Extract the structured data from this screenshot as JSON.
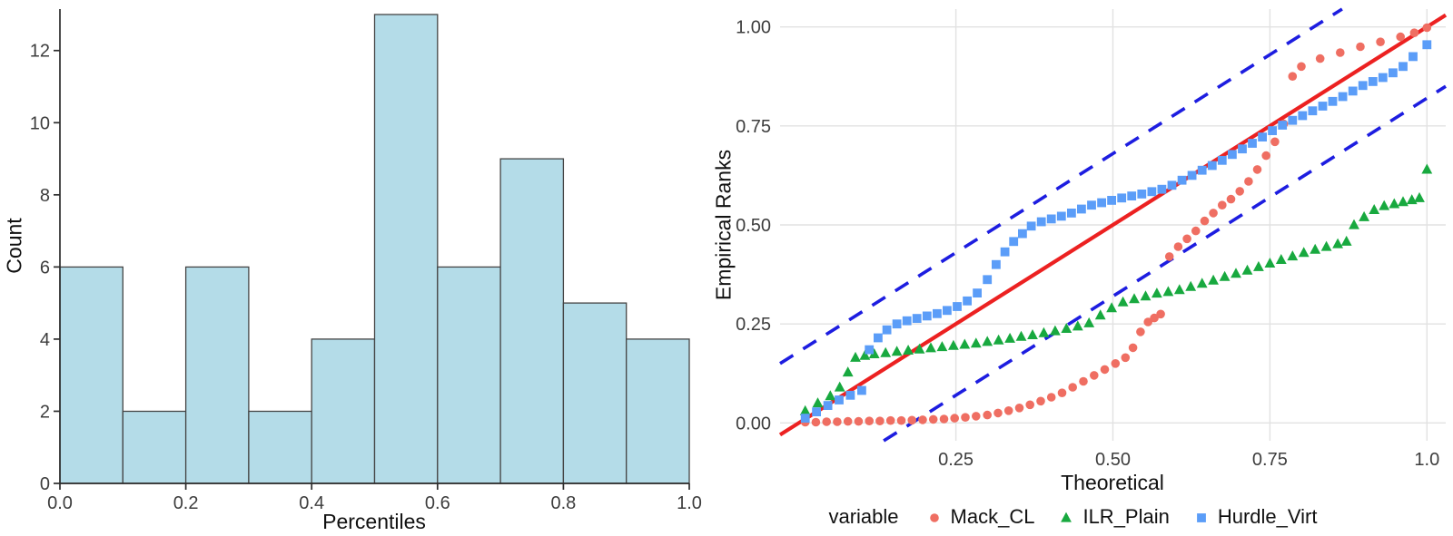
{
  "chart_data": [
    {
      "id": "percentile-histogram",
      "type": "bar",
      "xlabel": "Percentiles",
      "ylabel": "Count",
      "bin_start": 0.0,
      "bin_width": 0.1,
      "values": [
        6,
        2,
        6,
        2,
        4,
        13,
        6,
        9,
        5,
        4
      ],
      "xlim": [
        0.0,
        1.0
      ],
      "ylim": [
        0,
        13.15
      ],
      "x_ticks": [
        {
          "v": 0.0,
          "label": "0.0"
        },
        {
          "v": 0.2,
          "label": "0.2"
        },
        {
          "v": 0.4,
          "label": "0.4"
        },
        {
          "v": 0.6,
          "label": "0.6"
        },
        {
          "v": 0.8,
          "label": "0.8"
        },
        {
          "v": 1.0,
          "label": "1.0"
        }
      ],
      "y_ticks": [
        {
          "v": 0,
          "label": "0"
        },
        {
          "v": 2,
          "label": "2"
        },
        {
          "v": 4,
          "label": "4"
        },
        {
          "v": 6,
          "label": "6"
        },
        {
          "v": 8,
          "label": "8"
        },
        {
          "v": 10,
          "label": "10"
        },
        {
          "v": 12,
          "label": "12"
        }
      ],
      "grid": false,
      "bar_fill": "#b4dce8",
      "bar_stroke": "#454545",
      "axis_color": "#2d2d2d"
    },
    {
      "id": "qq-plot",
      "type": "scatter",
      "xlabel": "Theoretical",
      "ylabel": "Empirical Ranks",
      "legend_title": "variable",
      "legend_position": "bottom",
      "xlim": [
        -0.03,
        1.03
      ],
      "ylim": [
        -0.045,
        1.045
      ],
      "x_ticks": [
        {
          "v": 0.25,
          "label": "0.25"
        },
        {
          "v": 0.5,
          "label": "0.50"
        },
        {
          "v": 0.75,
          "label": "0.75"
        },
        {
          "v": 1.0,
          "label": "1.0"
        }
      ],
      "y_ticks": [
        {
          "v": 0.0,
          "label": "0.00"
        },
        {
          "v": 0.25,
          "label": "0.25"
        },
        {
          "v": 0.5,
          "label": "0.50"
        },
        {
          "v": 0.75,
          "label": "0.75"
        },
        {
          "v": 1.0,
          "label": "1.00"
        }
      ],
      "grid": true,
      "grid_color": "#e2e2e2",
      "reference_line": {
        "type": "identity",
        "color": "#ec2121",
        "width": 4.2
      },
      "band_lines": [
        {
          "offset": 0.18
        },
        {
          "offset": -0.18
        }
      ],
      "band_style": {
        "color": "#1d1de0",
        "dash": "17 13",
        "width": 3.6
      },
      "series": [
        {
          "name": "Mack_CL",
          "marker": "circle",
          "color": "#ef6e62",
          "points": [
            [
              0.01,
              0.002
            ],
            [
              0.027,
              0.002
            ],
            [
              0.044,
              0.003
            ],
            [
              0.061,
              0.003
            ],
            [
              0.078,
              0.004
            ],
            [
              0.095,
              0.004
            ],
            [
              0.112,
              0.005
            ],
            [
              0.129,
              0.005
            ],
            [
              0.146,
              0.006
            ],
            [
              0.163,
              0.006
            ],
            [
              0.18,
              0.007
            ],
            [
              0.197,
              0.008
            ],
            [
              0.214,
              0.009
            ],
            [
              0.231,
              0.01
            ],
            [
              0.248,
              0.012
            ],
            [
              0.265,
              0.014
            ],
            [
              0.282,
              0.017
            ],
            [
              0.3,
              0.02
            ],
            [
              0.317,
              0.025
            ],
            [
              0.334,
              0.031
            ],
            [
              0.351,
              0.038
            ],
            [
              0.368,
              0.046
            ],
            [
              0.385,
              0.055
            ],
            [
              0.402,
              0.065
            ],
            [
              0.419,
              0.076
            ],
            [
              0.436,
              0.09
            ],
            [
              0.453,
              0.105
            ],
            [
              0.47,
              0.12
            ],
            [
              0.487,
              0.135
            ],
            [
              0.504,
              0.15
            ],
            [
              0.52,
              0.165
            ],
            [
              0.532,
              0.19
            ],
            [
              0.544,
              0.23
            ],
            [
              0.556,
              0.255
            ],
            [
              0.566,
              0.265
            ],
            [
              0.576,
              0.275
            ],
            [
              0.59,
              0.42
            ],
            [
              0.604,
              0.445
            ],
            [
              0.618,
              0.465
            ],
            [
              0.632,
              0.485
            ],
            [
              0.646,
              0.51
            ],
            [
              0.66,
              0.53
            ],
            [
              0.674,
              0.55
            ],
            [
              0.688,
              0.565
            ],
            [
              0.702,
              0.585
            ],
            [
              0.716,
              0.61
            ],
            [
              0.73,
              0.64
            ],
            [
              0.744,
              0.675
            ],
            [
              0.758,
              0.71
            ],
            [
              0.772,
              0.755
            ],
            [
              0.786,
              0.875
            ],
            [
              0.8,
              0.9
            ],
            [
              0.83,
              0.92
            ],
            [
              0.862,
              0.935
            ],
            [
              0.894,
              0.95
            ],
            [
              0.926,
              0.962
            ],
            [
              0.958,
              0.975
            ],
            [
              0.98,
              0.985
            ],
            [
              1.0,
              0.998
            ]
          ]
        },
        {
          "name": "ILR_Plain",
          "marker": "triangle",
          "color": "#18a93f",
          "points": [
            [
              0.01,
              0.03
            ],
            [
              0.03,
              0.05
            ],
            [
              0.05,
              0.068
            ],
            [
              0.065,
              0.09
            ],
            [
              0.078,
              0.128
            ],
            [
              0.09,
              0.165
            ],
            [
              0.105,
              0.17
            ],
            [
              0.12,
              0.174
            ],
            [
              0.138,
              0.177
            ],
            [
              0.156,
              0.18
            ],
            [
              0.174,
              0.183
            ],
            [
              0.192,
              0.186
            ],
            [
              0.21,
              0.189
            ],
            [
              0.228,
              0.192
            ],
            [
              0.246,
              0.195
            ],
            [
              0.264,
              0.198
            ],
            [
              0.282,
              0.201
            ],
            [
              0.3,
              0.205
            ],
            [
              0.318,
              0.209
            ],
            [
              0.336,
              0.213
            ],
            [
              0.354,
              0.218
            ],
            [
              0.372,
              0.222
            ],
            [
              0.39,
              0.227
            ],
            [
              0.408,
              0.232
            ],
            [
              0.426,
              0.238
            ],
            [
              0.444,
              0.244
            ],
            [
              0.462,
              0.252
            ],
            [
              0.48,
              0.272
            ],
            [
              0.498,
              0.29
            ],
            [
              0.516,
              0.305
            ],
            [
              0.534,
              0.313
            ],
            [
              0.552,
              0.32
            ],
            [
              0.57,
              0.327
            ],
            [
              0.588,
              0.331
            ],
            [
              0.606,
              0.336
            ],
            [
              0.624,
              0.344
            ],
            [
              0.642,
              0.352
            ],
            [
              0.66,
              0.36
            ],
            [
              0.678,
              0.369
            ],
            [
              0.696,
              0.377
            ],
            [
              0.714,
              0.385
            ],
            [
              0.732,
              0.394
            ],
            [
              0.75,
              0.403
            ],
            [
              0.768,
              0.412
            ],
            [
              0.786,
              0.421
            ],
            [
              0.804,
              0.43
            ],
            [
              0.822,
              0.438
            ],
            [
              0.84,
              0.445
            ],
            [
              0.858,
              0.452
            ],
            [
              0.872,
              0.458
            ],
            [
              0.884,
              0.5
            ],
            [
              0.9,
              0.52
            ],
            [
              0.916,
              0.538
            ],
            [
              0.932,
              0.548
            ],
            [
              0.948,
              0.553
            ],
            [
              0.962,
              0.558
            ],
            [
              0.976,
              0.563
            ],
            [
              0.988,
              0.568
            ],
            [
              1.0,
              0.64
            ]
          ]
        },
        {
          "name": "Hurdle_Virt",
          "marker": "square",
          "color": "#5b9df8",
          "points": [
            [
              0.01,
              0.012
            ],
            [
              0.028,
              0.028
            ],
            [
              0.046,
              0.044
            ],
            [
              0.064,
              0.058
            ],
            [
              0.082,
              0.07
            ],
            [
              0.1,
              0.082
            ],
            [
              0.112,
              0.185
            ],
            [
              0.126,
              0.215
            ],
            [
              0.14,
              0.235
            ],
            [
              0.156,
              0.25
            ],
            [
              0.172,
              0.258
            ],
            [
              0.188,
              0.264
            ],
            [
              0.204,
              0.27
            ],
            [
              0.22,
              0.276
            ],
            [
              0.236,
              0.284
            ],
            [
              0.252,
              0.294
            ],
            [
              0.268,
              0.308
            ],
            [
              0.284,
              0.328
            ],
            [
              0.3,
              0.362
            ],
            [
              0.314,
              0.4
            ],
            [
              0.328,
              0.432
            ],
            [
              0.342,
              0.458
            ],
            [
              0.356,
              0.478
            ],
            [
              0.37,
              0.497
            ],
            [
              0.386,
              0.508
            ],
            [
              0.402,
              0.515
            ],
            [
              0.418,
              0.522
            ],
            [
              0.434,
              0.53
            ],
            [
              0.45,
              0.54
            ],
            [
              0.466,
              0.55
            ],
            [
              0.482,
              0.556
            ],
            [
              0.498,
              0.562
            ],
            [
              0.514,
              0.568
            ],
            [
              0.53,
              0.573
            ],
            [
              0.546,
              0.578
            ],
            [
              0.562,
              0.584
            ],
            [
              0.578,
              0.59
            ],
            [
              0.594,
              0.6
            ],
            [
              0.61,
              0.613
            ],
            [
              0.626,
              0.625
            ],
            [
              0.642,
              0.638
            ],
            [
              0.658,
              0.65
            ],
            [
              0.674,
              0.663
            ],
            [
              0.69,
              0.678
            ],
            [
              0.706,
              0.692
            ],
            [
              0.722,
              0.706
            ],
            [
              0.738,
              0.722
            ],
            [
              0.754,
              0.738
            ],
            [
              0.77,
              0.752
            ],
            [
              0.786,
              0.764
            ],
            [
              0.802,
              0.776
            ],
            [
              0.818,
              0.788
            ],
            [
              0.834,
              0.8
            ],
            [
              0.85,
              0.812
            ],
            [
              0.866,
              0.824
            ],
            [
              0.882,
              0.838
            ],
            [
              0.898,
              0.852
            ],
            [
              0.914,
              0.862
            ],
            [
              0.93,
              0.872
            ],
            [
              0.946,
              0.884
            ],
            [
              0.962,
              0.9
            ],
            [
              0.978,
              0.925
            ],
            [
              1.0,
              0.955
            ]
          ]
        }
      ]
    }
  ]
}
